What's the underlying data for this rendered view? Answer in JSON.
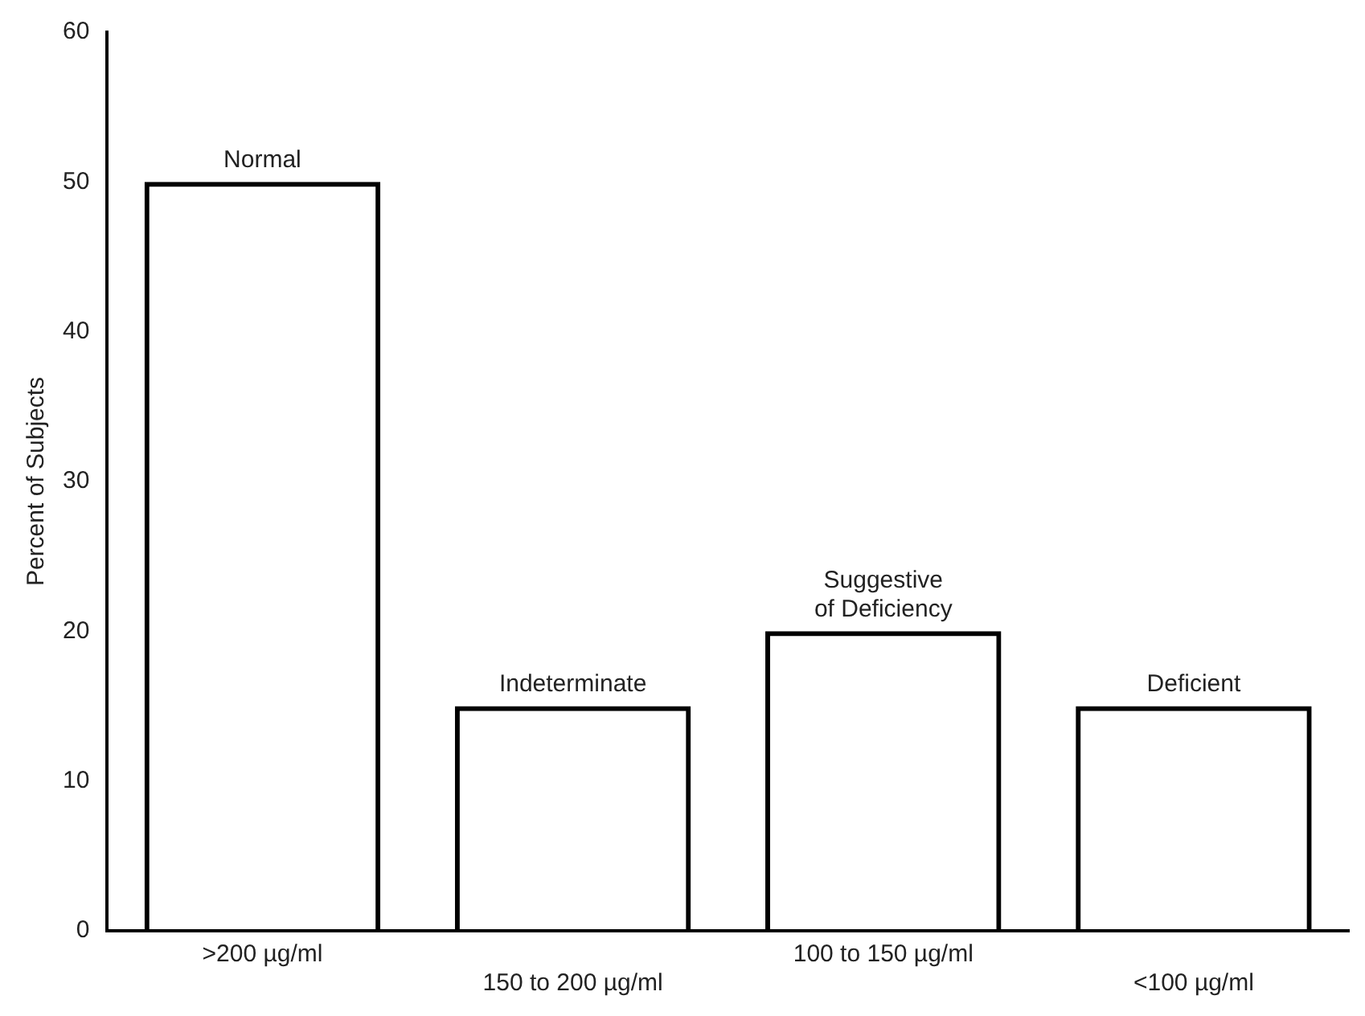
{
  "chart_data": {
    "type": "bar",
    "ylabel": "Percent of Subjects",
    "categories": [
      ">200 µg/ml",
      "150 to 200 µg/ml",
      "100 to 150 µg/ml",
      "<100 µg/ml"
    ],
    "values": [
      50,
      15,
      20,
      15
    ],
    "color": "#000000",
    "ylim": [
      0,
      60
    ],
    "yticks": [
      0,
      10,
      20,
      30,
      40,
      50,
      60
    ],
    "grid": false,
    "legend": false,
    "annotations": [
      {
        "text": "Normal",
        "x": ">200 µg/ml",
        "y": 50
      },
      {
        "text": "Indeterminate",
        "x": "150 to 200 µg/ml",
        "y": 15
      },
      {
        "text": "Suggestive\nof Deficiency",
        "x": "100 to 150 µg/ml",
        "y": 20
      },
      {
        "text": "Deficient",
        "x": "<100 µg/ml",
        "y": 15
      }
    ]
  }
}
